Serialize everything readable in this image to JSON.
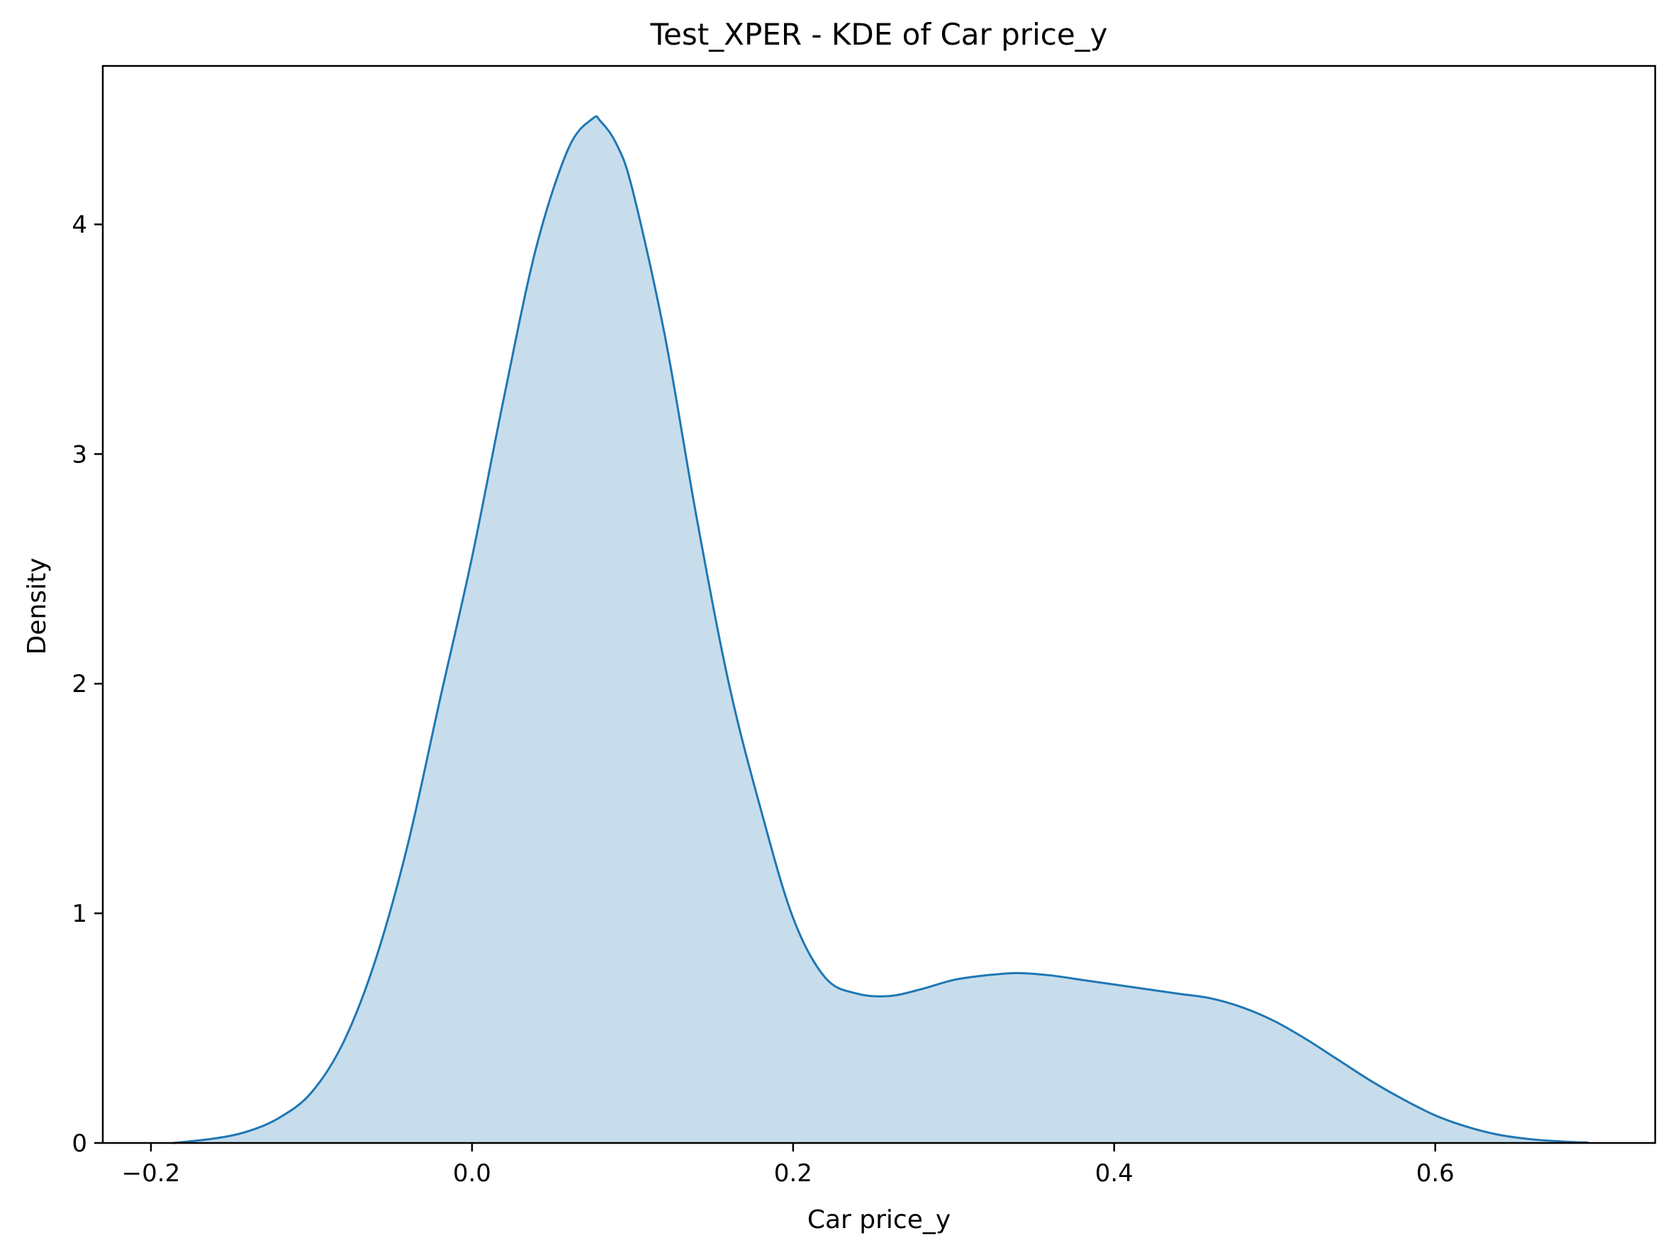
{
  "chart_data": {
    "type": "area",
    "title": "Test_XPER - KDE of Car price_y",
    "xlabel": "Car price_y",
    "ylabel": "Density",
    "xlim": [
      -0.23,
      0.737
    ],
    "ylim": [
      0,
      4.69
    ],
    "x_ticks": [
      -0.2,
      0.0,
      0.2,
      0.4,
      0.6
    ],
    "x_tick_labels": [
      "−0.2",
      "0.0",
      "0.2",
      "0.4",
      "0.6"
    ],
    "y_ticks": [
      0,
      1,
      2,
      3,
      4
    ],
    "y_tick_labels": [
      "0",
      "1",
      "2",
      "3",
      "4"
    ],
    "grid": false,
    "line_color": "#1f77b4",
    "fill_color": "#1f77b4",
    "fill_opacity": 0.25,
    "series": [
      {
        "x": [
          -0.186,
          -0.16,
          -0.14,
          -0.12,
          -0.1,
          -0.08,
          -0.06,
          -0.04,
          -0.02,
          0.0,
          0.02,
          0.04,
          0.06,
          0.075,
          0.08,
          0.09,
          0.1,
          0.12,
          0.14,
          0.16,
          0.18,
          0.2,
          0.22,
          0.24,
          0.26,
          0.28,
          0.3,
          0.32,
          0.34,
          0.36,
          0.38,
          0.4,
          0.42,
          0.44,
          0.46,
          0.48,
          0.5,
          0.52,
          0.54,
          0.56,
          0.58,
          0.6,
          0.62,
          0.64,
          0.66,
          0.68,
          0.695
        ],
        "y": [
          0.0,
          0.02,
          0.05,
          0.11,
          0.22,
          0.44,
          0.8,
          1.3,
          1.93,
          2.55,
          3.25,
          3.9,
          4.33,
          4.46,
          4.45,
          4.35,
          4.15,
          3.52,
          2.72,
          2.0,
          1.45,
          0.98,
          0.72,
          0.65,
          0.64,
          0.67,
          0.71,
          0.73,
          0.74,
          0.73,
          0.71,
          0.69,
          0.67,
          0.65,
          0.63,
          0.59,
          0.53,
          0.45,
          0.36,
          0.27,
          0.19,
          0.12,
          0.07,
          0.035,
          0.016,
          0.006,
          0.002
        ]
      }
    ]
  }
}
